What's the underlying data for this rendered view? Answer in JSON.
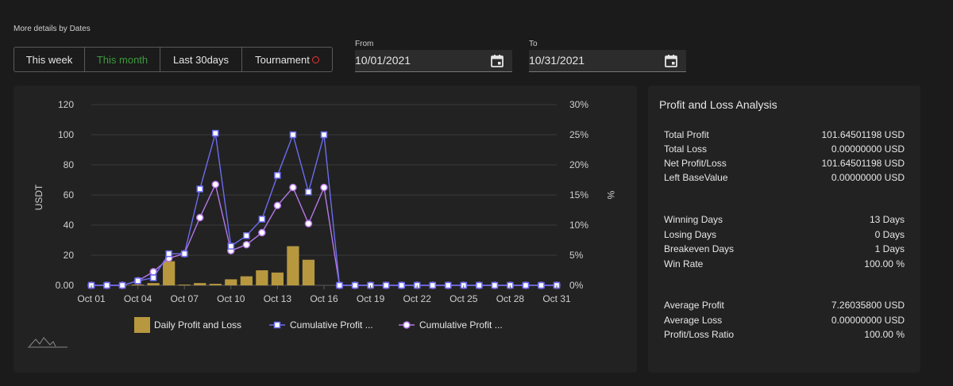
{
  "heading": "More details by Dates",
  "tabs": [
    {
      "label": "This week",
      "active": false
    },
    {
      "label": "This month",
      "active": true
    },
    {
      "label": "Last 30days",
      "active": false
    },
    {
      "label": "Tournament",
      "active": false
    }
  ],
  "date_from": {
    "label": "From",
    "value": "10/01/2021"
  },
  "date_to": {
    "label": "To",
    "value": "10/31/2021"
  },
  "colors": {
    "bar": "#b7983f",
    "line1": "#6b6cf0",
    "line2": "#b678e8",
    "active_tab": "#3c9a3c"
  },
  "chart_data": {
    "type": "bar+line",
    "categories": [
      "Oct 01",
      "Oct 02",
      "Oct 03",
      "Oct 04",
      "Oct 05",
      "Oct 06",
      "Oct 07",
      "Oct 08",
      "Oct 09",
      "Oct 10",
      "Oct 11",
      "Oct 12",
      "Oct 13",
      "Oct 14",
      "Oct 15",
      "Oct 16",
      "Oct 17",
      "Oct 18",
      "Oct 19",
      "Oct 20",
      "Oct 21",
      "Oct 22",
      "Oct 23",
      "Oct 24",
      "Oct 25",
      "Oct 26",
      "Oct 27",
      "Oct 28",
      "Oct 29",
      "Oct 30",
      "Oct 31"
    ],
    "x_tick_labels": [
      "Oct 01",
      "Oct 04",
      "Oct 07",
      "Oct 10",
      "Oct 13",
      "Oct 16",
      "Oct 19",
      "Oct 22",
      "Oct 25",
      "Oct 28",
      "Oct 31"
    ],
    "ylabel": "USDT",
    "y2label": "%",
    "ylim": [
      0,
      120
    ],
    "y_ticks": [
      "0.00",
      "20",
      "40",
      "60",
      "80",
      "100",
      "120"
    ],
    "y2lim": [
      0,
      30
    ],
    "y2_ticks": [
      "0%",
      "5%",
      "10%",
      "15%",
      "20%",
      "25%",
      "30%"
    ],
    "series": [
      {
        "name": "Daily Profit and Loss",
        "type": "bar",
        "axis": "left",
        "values": [
          0,
          0,
          0,
          0.5,
          1.5,
          16,
          0.5,
          1.5,
          1,
          4,
          6,
          10,
          8.5,
          26,
          17,
          0,
          0,
          0,
          0,
          0,
          0,
          0,
          0,
          0,
          0,
          0,
          0,
          0,
          0,
          0,
          0
        ]
      },
      {
        "name": "Cumulative Profit ...",
        "type": "line",
        "axis": "left",
        "marker": "square",
        "values": [
          0,
          0,
          0,
          3,
          5,
          21,
          21,
          64,
          101,
          26,
          33,
          44,
          73,
          100,
          62,
          100,
          0,
          0,
          0,
          0,
          0,
          0,
          0,
          0,
          0,
          0,
          0,
          0,
          0,
          0,
          0
        ]
      },
      {
        "name": "Cumulative Profit ...",
        "type": "line",
        "axis": "left",
        "marker": "circle",
        "values": [
          0,
          0,
          0,
          3,
          9,
          18,
          21,
          45,
          67,
          23,
          27,
          35,
          53,
          65,
          41,
          65,
          0,
          0,
          0,
          0,
          0,
          0,
          0,
          0,
          0,
          0,
          0,
          0,
          0,
          0,
          0
        ]
      }
    ],
    "legend_position": "bottom",
    "grid": true
  },
  "pl": {
    "title": "Profit and Loss Analysis",
    "rows": [
      {
        "label": "Total Profit",
        "value": "101.64501198 USD"
      },
      {
        "label": "Total Loss",
        "value": "0.00000000 USD"
      },
      {
        "label": "Net Profit/Loss",
        "value": "101.64501198 USD"
      },
      {
        "label": "Left BaseValue",
        "value": "0.00000000 USD"
      },
      {
        "label": "Winning Days",
        "value": "13 Days"
      },
      {
        "label": "Losing Days",
        "value": "0 Days"
      },
      {
        "label": "Breakeven Days",
        "value": "1 Days"
      },
      {
        "label": "Win Rate",
        "value": "100.00 %"
      },
      {
        "label": "Average Profit",
        "value": "7.26035800 USD"
      },
      {
        "label": "Average Loss",
        "value": "0.00000000 USD"
      },
      {
        "label": "Profit/Loss Ratio",
        "value": "100.00 %"
      }
    ]
  }
}
